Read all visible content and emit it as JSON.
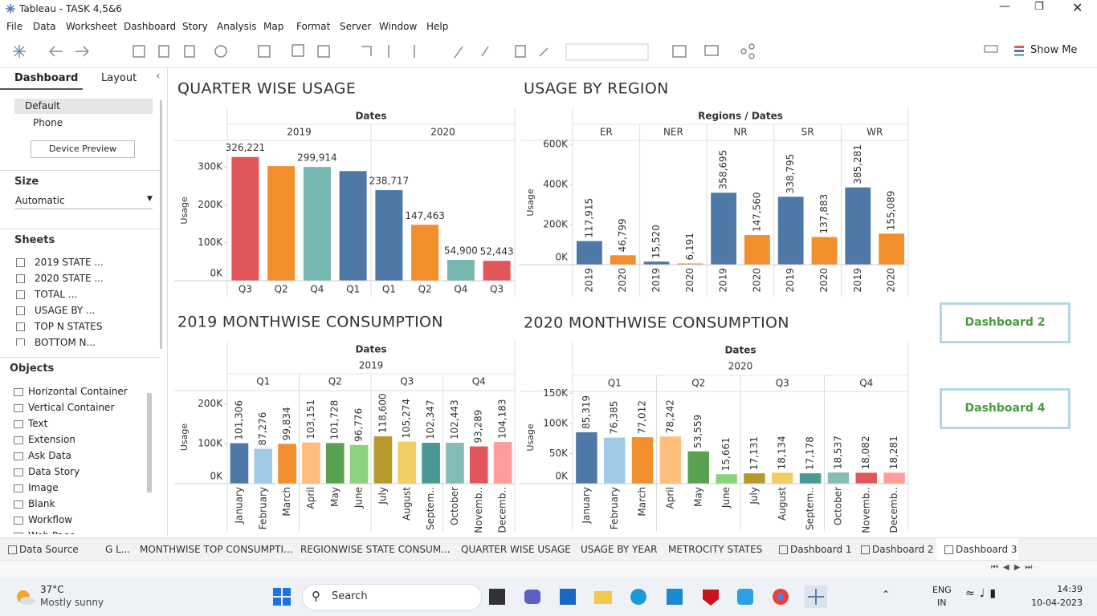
{
  "window_title": "Tableau - TASK 4,5&6",
  "menu": [
    "File",
    "Data",
    "Worksheet",
    "Dashboard",
    "Story",
    "Analysis",
    "Map",
    "Format",
    "Server",
    "Window",
    "Help"
  ],
  "toolbar": {
    "show_me": "Show Me"
  },
  "side_pane": {
    "tabs": [
      "Dashboard",
      "Layout"
    ],
    "devices": [
      "Default",
      "Phone"
    ],
    "device_preview": "Device Preview",
    "size_heading": "Size",
    "size_value": "Automatic",
    "sheets_heading": "Sheets",
    "sheets": [
      "2019 STATE ...",
      "2020 STATE ...",
      "TOTAL ...",
      "USAGE BY ...",
      "TOP N STATES",
      "BOTTOM N..."
    ],
    "objects_heading": "Objects",
    "objects": [
      "Horizontal Container",
      "Vertical Container",
      "Text",
      "Extension",
      "Ask Data",
      "Data Story",
      "Image",
      "Blank",
      "Workflow",
      "Web Page"
    ]
  },
  "navigation_buttons": [
    "Dashboard 2",
    "Dashboard 4"
  ],
  "sheet_tabs": [
    "Data Source",
    "G L...",
    "MONTHWISE TOP CONSUMPTI...",
    "REGIONWISE STATE CONSUM...",
    "QUARTER WISE USAGE",
    "USAGE BY YEAR",
    "METROCITY STATES",
    "Dashboard 1",
    "Dashboard 2",
    "Dashboard 3"
  ],
  "taskbar": {
    "temperature": "37°C",
    "weather": "Mostly sunny",
    "search": "Search",
    "language": "ENG",
    "region": "IN",
    "time": "14:39",
    "date": "10-04-2023"
  },
  "chart_data": [
    {
      "type": "bar",
      "title": "QUARTER WISE USAGE",
      "header": "Dates",
      "y_label": "Usage",
      "rotate_labels": false,
      "ylim": [
        0,
        370000
      ],
      "yticks": [
        {
          "value": 0,
          "label": "0K"
        },
        {
          "value": 100000,
          "label": "100K"
        },
        {
          "value": 200000,
          "label": "200K"
        },
        {
          "value": 300000,
          "label": "300K"
        }
      ],
      "groups": [
        {
          "name": "2019",
          "categories": [
            "Q3",
            "Q2",
            "Q4",
            "Q1"
          ],
          "values": [
            326221,
            302000,
            299914,
            289000
          ],
          "value_labels": [
            "326,221",
            null,
            "299,914",
            null
          ],
          "colors": [
            "#e15759",
            "#f28e2b",
            "#76b7b2",
            "#4e79a7"
          ]
        },
        {
          "name": "2020",
          "categories": [
            "Q1",
            "Q2",
            "Q4",
            "Q3"
          ],
          "values": [
            238717,
            147463,
            54900,
            52443
          ],
          "value_labels": [
            "238,717",
            "147,463",
            "54,900",
            "52,443"
          ],
          "colors": [
            "#4e79a7",
            "#f28e2b",
            "#76b7b2",
            "#e15759"
          ]
        }
      ]
    },
    {
      "type": "bar",
      "title": "USAGE BY REGION",
      "header": "Regions / Dates",
      "y_label": "Usage",
      "rotate_labels": true,
      "ylim": [
        0,
        620000
      ],
      "yticks": [
        {
          "value": 0,
          "label": "0K"
        },
        {
          "value": 200000,
          "label": "200K"
        },
        {
          "value": 400000,
          "label": "400K"
        },
        {
          "value": 600000,
          "label": "600K"
        }
      ],
      "groups": [
        {
          "name": "ER",
          "categories": [
            "2019",
            "2020"
          ],
          "values": [
            117915,
            46799
          ],
          "value_labels": [
            "117,915",
            "46,799"
          ],
          "colors": [
            "#4e79a7",
            "#f28e2b"
          ]
        },
        {
          "name": "NER",
          "categories": [
            "2019",
            "2020"
          ],
          "values": [
            15520,
            6191
          ],
          "value_labels": [
            "15,520",
            "6,191"
          ],
          "colors": [
            "#4e79a7",
            "#f28e2b"
          ]
        },
        {
          "name": "NR",
          "categories": [
            "2019",
            "2020"
          ],
          "values": [
            358695,
            147560
          ],
          "value_labels": [
            "358,695",
            "147,560"
          ],
          "colors": [
            "#4e79a7",
            "#f28e2b"
          ]
        },
        {
          "name": "SR",
          "categories": [
            "2019",
            "2020"
          ],
          "values": [
            338795,
            137883
          ],
          "value_labels": [
            "338,795",
            "137,883"
          ],
          "colors": [
            "#4e79a7",
            "#f28e2b"
          ]
        },
        {
          "name": "WR",
          "categories": [
            "2019",
            "2020"
          ],
          "values": [
            385281,
            155089
          ],
          "value_labels": [
            "385,281",
            "155,089"
          ],
          "colors": [
            "#4e79a7",
            "#f28e2b"
          ]
        }
      ]
    },
    {
      "type": "bar",
      "title": "2019 MONTHWISE CONSUMPTION",
      "header": "Dates",
      "super_group": "2019",
      "y_label": "Usage",
      "rotate_labels": true,
      "ylim": [
        0,
        233000
      ],
      "yticks": [
        {
          "value": 0,
          "label": "0K"
        },
        {
          "value": 100000,
          "label": "100K"
        },
        {
          "value": 200000,
          "label": "200K"
        }
      ],
      "groups": [
        {
          "name": "Q1",
          "categories": [
            "January",
            "February",
            "March"
          ],
          "values": [
            101306,
            87276,
            99834
          ],
          "value_labels": [
            "101,306",
            "87,276",
            "99,834"
          ],
          "colors": [
            "#4e79a7",
            "#a0cbe8",
            "#f28e2b"
          ]
        },
        {
          "name": "Q2",
          "categories": [
            "April",
            "May",
            "June"
          ],
          "values": [
            103151,
            101728,
            96776
          ],
          "value_labels": [
            "103,151",
            "101,728",
            "96,776"
          ],
          "colors": [
            "#ffbe7d",
            "#59a14f",
            "#8cd17d"
          ]
        },
        {
          "name": "Q3",
          "categories": [
            "July",
            "August",
            "Septem.."
          ],
          "values": [
            118600,
            105274,
            102347
          ],
          "value_labels": [
            "118,600",
            "105,274",
            "102,347"
          ],
          "colors": [
            "#b6992d",
            "#f1ce63",
            "#499894"
          ]
        },
        {
          "name": "Q4",
          "categories": [
            "October",
            "Novemb..",
            "Decemb.."
          ],
          "values": [
            102443,
            93289,
            104183
          ],
          "value_labels": [
            "102,443",
            "93,289",
            "104,183"
          ],
          "colors": [
            "#86bcb6",
            "#e15759",
            "#ff9d9a"
          ]
        }
      ]
    },
    {
      "type": "bar",
      "title": "2020 MONTHWISE CONSUMPTION",
      "header": "Dates",
      "super_group": "2020",
      "y_label": "Usage",
      "rotate_labels": true,
      "ylim": [
        0,
        153000
      ],
      "yticks": [
        {
          "value": 0,
          "label": "0K"
        },
        {
          "value": 50000,
          "label": "50K"
        },
        {
          "value": 100000,
          "label": "100K"
        },
        {
          "value": 150000,
          "label": "150K"
        }
      ],
      "groups": [
        {
          "name": "Q1",
          "categories": [
            "January",
            "February",
            "March"
          ],
          "values": [
            85319,
            76385,
            77012
          ],
          "value_labels": [
            "85,319",
            "76,385",
            "77,012"
          ],
          "colors": [
            "#4e79a7",
            "#a0cbe8",
            "#f28e2b"
          ]
        },
        {
          "name": "Q2",
          "categories": [
            "April",
            "May",
            "June"
          ],
          "values": [
            78242,
            53559,
            15661
          ],
          "value_labels": [
            "78,242",
            "53,559",
            "15,661"
          ],
          "colors": [
            "#ffbe7d",
            "#59a14f",
            "#8cd17d"
          ]
        },
        {
          "name": "Q3",
          "categories": [
            "July",
            "August",
            "Septem.."
          ],
          "values": [
            17131,
            18134,
            17178
          ],
          "value_labels": [
            "17,131",
            "18,134",
            "17,178"
          ],
          "colors": [
            "#b6992d",
            "#f1ce63",
            "#499894"
          ]
        },
        {
          "name": "Q4",
          "categories": [
            "October",
            "Novemb..",
            "Decemb.."
          ],
          "values": [
            18537,
            18082,
            18281
          ],
          "value_labels": [
            "18,537",
            "18,082",
            "18,281"
          ],
          "colors": [
            "#86bcb6",
            "#e15759",
            "#ff9d9a"
          ]
        }
      ]
    }
  ]
}
